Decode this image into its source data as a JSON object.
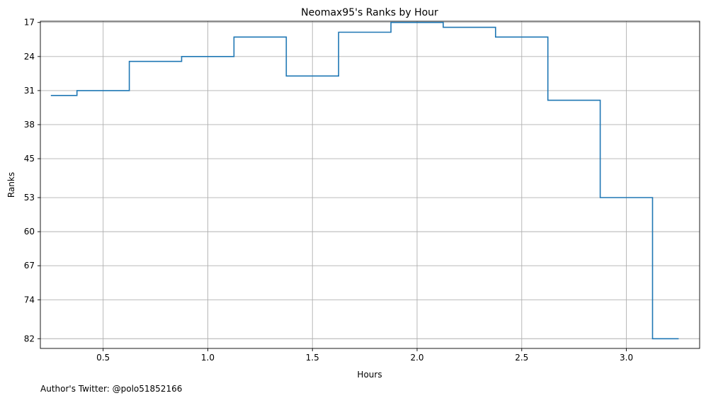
{
  "chart_data": {
    "type": "line",
    "step": "mid",
    "title": "Neomax95's Ranks by Hour",
    "xlabel": "Hours",
    "ylabel": "Ranks",
    "xlim": [
      0.2,
      3.35
    ],
    "ylim": [
      16.75,
      84
    ],
    "y_inverted": false,
    "grid": true,
    "x_ticks": [
      0.5,
      1.0,
      1.5,
      2.0,
      2.5,
      3.0
    ],
    "x_tick_labels": [
      "0.5",
      "1.0",
      "1.5",
      "2.0",
      "2.5",
      "3.0"
    ],
    "y_ticks": [
      17,
      24,
      31,
      38,
      45,
      53,
      60,
      67,
      74,
      82
    ],
    "y_tick_labels": [
      "17",
      "24",
      "31",
      "38",
      "45",
      "53",
      "60",
      "67",
      "74",
      "82"
    ],
    "series": [
      {
        "color": "#1f77b4",
        "x": [
          0.25,
          0.5,
          0.75,
          1.0,
          1.25,
          1.5,
          1.75,
          2.0,
          2.25,
          2.5,
          2.75,
          3.0,
          3.25
        ],
        "y": [
          32,
          31,
          25,
          24,
          20,
          28,
          19,
          17,
          18,
          20,
          33,
          53,
          82
        ]
      }
    ]
  },
  "footnote": "Author's Twitter: @polo51852166"
}
